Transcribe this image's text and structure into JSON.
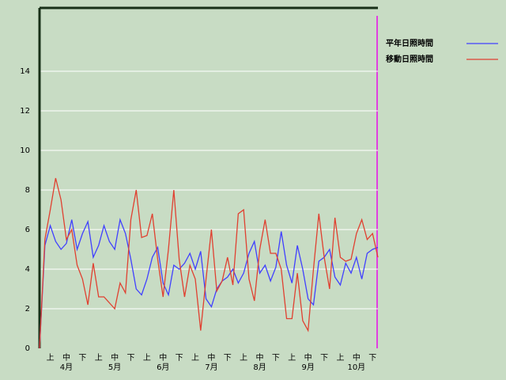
{
  "chart_data": {
    "type": "line",
    "categories": [
      null,
      null,
      "上",
      null,
      null,
      "中",
      null,
      null,
      "下",
      null,
      null,
      "上",
      null,
      null,
      "中",
      null,
      null,
      "下",
      null,
      null,
      "上",
      null,
      null,
      "中",
      null,
      null,
      "下",
      null,
      null,
      "上",
      null,
      null,
      "中",
      null,
      null,
      "下",
      null,
      null,
      "上",
      null,
      null,
      "中",
      null,
      null,
      "下",
      null,
      null,
      "上",
      null,
      null,
      "中",
      null,
      null,
      "下",
      null,
      null,
      "上",
      null,
      null,
      "中",
      null,
      null,
      "下",
      null
    ],
    "month_labels": [
      null,
      null,
      null,
      null,
      null,
      "4月",
      null,
      null,
      null,
      null,
      null,
      null,
      null,
      null,
      "5月",
      null,
      null,
      null,
      null,
      null,
      null,
      null,
      null,
      "6月",
      null,
      null,
      null,
      null,
      null,
      null,
      null,
      null,
      "7月",
      null,
      null,
      null,
      null,
      null,
      null,
      null,
      null,
      "8月",
      null,
      null,
      null,
      null,
      null,
      null,
      null,
      null,
      "9月",
      null,
      null,
      null,
      null,
      null,
      null,
      null,
      null,
      "10月",
      null,
      null,
      null,
      null,
      null
    ],
    "series": [
      {
        "name": "平年日照時間",
        "color": "#4040ff",
        "values": [
          0,
          5.2,
          6.2,
          5.4,
          5.0,
          5.3,
          6.5,
          5.0,
          5.8,
          6.4,
          4.6,
          5.2,
          6.2,
          5.4,
          5.0,
          6.5,
          5.8,
          4.5,
          3.0,
          2.7,
          3.5,
          4.6,
          5.1,
          3.3,
          2.7,
          4.2,
          4.0,
          4.3,
          4.8,
          4.0,
          4.9,
          2.5,
          2.1,
          3.0,
          3.4,
          3.6,
          4.0,
          3.3,
          3.8,
          4.8,
          5.4,
          3.8,
          4.2,
          3.4,
          4.1,
          5.9,
          4.2,
          3.3,
          5.2,
          4.0,
          2.5,
          2.2,
          4.4,
          4.6,
          5.0,
          3.6,
          3.2,
          4.3,
          3.8,
          4.6,
          3.5,
          4.8,
          5.0,
          5.1
        ]
      },
      {
        "name": "移動日照時間",
        "color": "#e04030",
        "values": [
          0,
          5.5,
          7.0,
          8.6,
          7.5,
          5.5,
          6.0,
          4.2,
          3.5,
          2.2,
          4.3,
          2.6,
          2.6,
          2.3,
          2.0,
          3.3,
          2.8,
          6.5,
          8.0,
          5.6,
          5.7,
          6.8,
          4.5,
          2.6,
          5.0,
          8.0,
          4.5,
          2.6,
          4.2,
          3.5,
          0.9,
          3.5,
          6.0,
          2.9,
          3.4,
          4.6,
          3.2,
          6.8,
          7.0,
          3.5,
          2.4,
          5.0,
          6.5,
          4.8,
          4.8,
          4.0,
          1.5,
          1.5,
          3.8,
          1.4,
          0.9,
          4.0,
          6.8,
          4.6,
          3.0,
          6.6,
          4.6,
          4.4,
          4.5,
          5.8,
          6.5,
          5.5,
          5.8,
          4.6
        ]
      }
    ],
    "ylim": [
      0,
      17.2
    ],
    "yticks": [
      0,
      2,
      4,
      6,
      8,
      10,
      12,
      14
    ],
    "grid": true
  }
}
